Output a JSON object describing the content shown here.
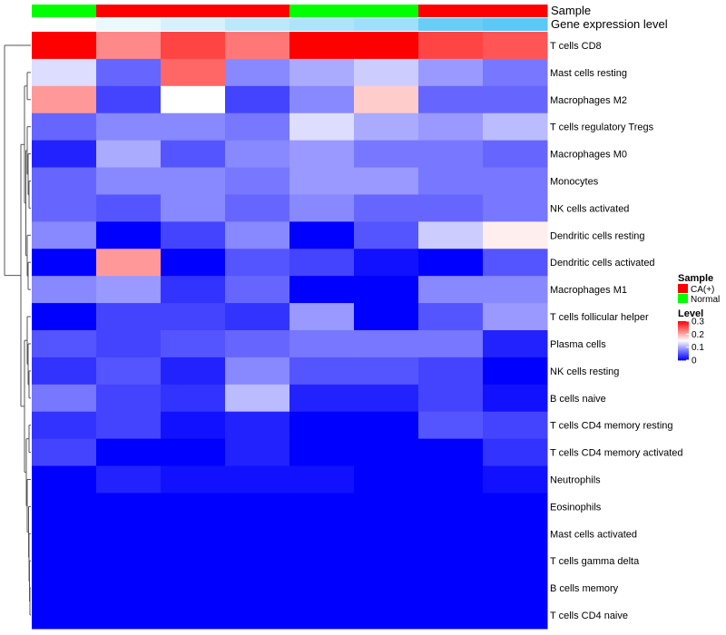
{
  "chart_data": {
    "type": "heatmap",
    "title": "",
    "annotation_labels": {
      "sample": "Sample",
      "expression": "Gene expression level"
    },
    "columns": [
      {
        "sample": "Normal",
        "expression_level": 0.1
      },
      {
        "sample": "CA(+)",
        "expression_level": 0.13
      },
      {
        "sample": "CA(+)",
        "expression_level": 0.16
      },
      {
        "sample": "CA(+)",
        "expression_level": 0.2
      },
      {
        "sample": "Normal",
        "expression_level": 0.22
      },
      {
        "sample": "Normal",
        "expression_level": 0.24
      },
      {
        "sample": "CA(+)",
        "expression_level": 0.32
      },
      {
        "sample": "CA(+)",
        "expression_level": 0.34
      }
    ],
    "rows": [
      "T cells CD8",
      "Mast cells resting",
      "Macrophages M2",
      "T cells regulatory  Tregs",
      "Macrophages M0",
      "Monocytes",
      "NK cells activated",
      "Dendritic cells resting",
      "Dendritic cells activated",
      "Macrophages M1",
      "T cells follicular helper",
      "Plasma cells",
      "NK cells resting",
      "B cells naive",
      "T cells CD4 memory resting",
      "T cells CD4 memory activated",
      "Neutrophils",
      "Eosinophils",
      "Mast cells activated",
      "T cells gamma delta",
      "B cells memory",
      "T cells CD4 naive"
    ],
    "values": [
      [
        0.3,
        0.22,
        0.26,
        0.23,
        0.3,
        0.3,
        0.26,
        0.25
      ],
      [
        0.13,
        0.06,
        0.24,
        0.08,
        0.1,
        0.12,
        0.09,
        0.07
      ],
      [
        0.21,
        0.04,
        0.15,
        0.04,
        0.08,
        0.18,
        0.06,
        0.06
      ],
      [
        0.06,
        0.08,
        0.08,
        0.07,
        0.13,
        0.1,
        0.09,
        0.11
      ],
      [
        0.02,
        0.1,
        0.05,
        0.08,
        0.09,
        0.07,
        0.07,
        0.06
      ],
      [
        0.06,
        0.08,
        0.08,
        0.07,
        0.09,
        0.09,
        0.07,
        0.07
      ],
      [
        0.06,
        0.05,
        0.08,
        0.06,
        0.08,
        0.06,
        0.06,
        0.07
      ],
      [
        0.08,
        0.0,
        0.04,
        0.08,
        0.0,
        0.05,
        0.12,
        0.16
      ],
      [
        0.0,
        0.21,
        0.0,
        0.05,
        0.04,
        0.01,
        0.0,
        0.05
      ],
      [
        0.08,
        0.09,
        0.03,
        0.06,
        0.0,
        0.0,
        0.08,
        0.08
      ],
      [
        0.0,
        0.04,
        0.04,
        0.03,
        0.09,
        0.0,
        0.05,
        0.09
      ],
      [
        0.05,
        0.04,
        0.05,
        0.06,
        0.07,
        0.07,
        0.07,
        0.02
      ],
      [
        0.03,
        0.05,
        0.02,
        0.08,
        0.05,
        0.05,
        0.04,
        0.0
      ],
      [
        0.07,
        0.04,
        0.03,
        0.11,
        0.02,
        0.02,
        0.04,
        0.01
      ],
      [
        0.03,
        0.04,
        0.01,
        0.02,
        0.0,
        0.0,
        0.05,
        0.04
      ],
      [
        0.04,
        0.0,
        0.0,
        0.02,
        0.0,
        0.0,
        0.0,
        0.03
      ],
      [
        0.0,
        0.02,
        0.01,
        0.01,
        0.01,
        0.0,
        0.0,
        0.01
      ],
      [
        0.0,
        0.0,
        0.0,
        0.0,
        0.0,
        0.0,
        0.0,
        0.0
      ],
      [
        0.0,
        0.0,
        0.0,
        0.0,
        0.0,
        0.0,
        0.0,
        0.0
      ],
      [
        0.0,
        0.0,
        0.0,
        0.0,
        0.0,
        0.0,
        0.0,
        0.0
      ],
      [
        0.0,
        0.0,
        0.0,
        0.0,
        0.0,
        0.0,
        0.0,
        0.0
      ],
      [
        0.0,
        0.0,
        0.0,
        0.0,
        0.0,
        0.0,
        0.0,
        0.0
      ]
    ],
    "color_scale": {
      "min": 0,
      "mid": 0.15,
      "max": 0.3,
      "low_color": "#0000ff",
      "mid_color": "#ffffff",
      "high_color": "#ff0000"
    },
    "sample_colors": {
      "CA(+)": "#ff0000",
      "Normal": "#00ff00"
    },
    "expression_annotation_scale": {
      "min": 0.1,
      "max": 0.34,
      "low_color": "#ffffff",
      "high_color": "#5bc8f5"
    },
    "legend": {
      "sample_title": "Sample",
      "sample_entries": [
        "CA(+)",
        "Normal"
      ],
      "level_title": "Level",
      "level_ticks": [
        {
          "label": "0.3",
          "value": 0.3
        },
        {
          "label": "0.2",
          "value": 0.2
        },
        {
          "label": "0.1",
          "value": 0.1
        },
        {
          "label": "0",
          "value": 0
        }
      ],
      "position": "right"
    },
    "row_dendrogram": "left",
    "column_dendrogram": "none"
  }
}
